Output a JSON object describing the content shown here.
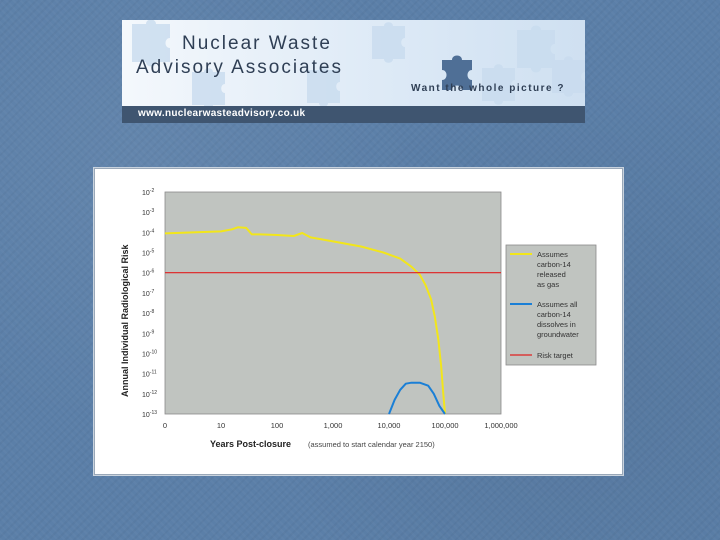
{
  "banner": {
    "title_line1": "Nuclear Waste",
    "title_line2": "Advisory Associates",
    "tagline": "Want the whole picture ?",
    "url": "www.nuclearwasteadvisory.co.uk",
    "puzzle_icon": "puzzle-piece-icon"
  },
  "colors": {
    "background": "#5b7fa8",
    "plot_area": "#c0c4c0",
    "series_gas": "#f2e61a",
    "series_groundwater": "#1a7fd6",
    "risk_target": "#e02020"
  },
  "chart_data": {
    "type": "line",
    "ylabel": "Annual Individual Radiological Risk",
    "xlabel": "Years Post-closure",
    "xlabel_note": "(assumed to start calendar year 2150)",
    "x_scale": "log",
    "y_scale": "log",
    "y_tick_labels": [
      "10-2",
      "10-3",
      "10-4",
      "10-5",
      "10-6",
      "10-7",
      "10-8",
      "10-9",
      "10-10",
      "10-11",
      "10-12",
      "10-13"
    ],
    "y_tick_exponents": [
      -2,
      -3,
      -4,
      -5,
      -6,
      -7,
      -8,
      -9,
      -10,
      -11,
      -12,
      -13
    ],
    "x_tick_labels": [
      "0",
      "10",
      "100",
      "1,000",
      "10,000",
      "100,000",
      "1,000,000"
    ],
    "x_tick_exponents": [
      0,
      1,
      2,
      3,
      4,
      5,
      6
    ],
    "xlim_exp": [
      0,
      6
    ],
    "ylim_exp": [
      -13,
      -2
    ],
    "grid": false,
    "legend_position": "right",
    "series": [
      {
        "name": "Assumes carbon-14 released as gas",
        "legend_lines": [
          "Assumes",
          "carbon-14",
          "released",
          "as gas"
        ],
        "color": "#f2e61a",
        "x_exp": [
          0,
          0.5,
          1.0,
          1.2,
          1.3,
          1.45,
          1.55,
          1.7,
          2.0,
          2.3,
          2.45,
          2.6,
          3.0,
          3.5,
          3.9,
          4.2,
          4.4,
          4.55,
          4.65,
          4.75,
          4.82,
          4.88,
          4.93,
          4.97,
          5.0
        ],
        "y_exp": [
          -4.05,
          -4.0,
          -3.95,
          -3.85,
          -3.75,
          -3.78,
          -4.1,
          -4.1,
          -4.13,
          -4.18,
          -4.03,
          -4.25,
          -4.45,
          -4.7,
          -5.0,
          -5.3,
          -5.7,
          -6.1,
          -6.6,
          -7.3,
          -8.2,
          -9.3,
          -10.6,
          -12.0,
          -13.0
        ]
      },
      {
        "name": "Assumes all carbon-14 dissolves in groundwater",
        "legend_lines": [
          "Assumes all",
          "carbon-14",
          "dissolves in",
          "groundwater"
        ],
        "color": "#1a7fd6",
        "x_exp": [
          4.0,
          4.1,
          4.2,
          4.3,
          4.4,
          4.55,
          4.7,
          4.8,
          4.9,
          5.0
        ],
        "y_exp": [
          -13.0,
          -12.3,
          -11.8,
          -11.5,
          -11.45,
          -11.45,
          -11.6,
          -12.0,
          -12.6,
          -13.0
        ]
      },
      {
        "name": "Risk target",
        "legend_lines": [
          "Risk target"
        ],
        "color": "#e02020",
        "x_exp": [
          0,
          6
        ],
        "y_exp": [
          -6.0,
          -6.0
        ]
      }
    ]
  }
}
